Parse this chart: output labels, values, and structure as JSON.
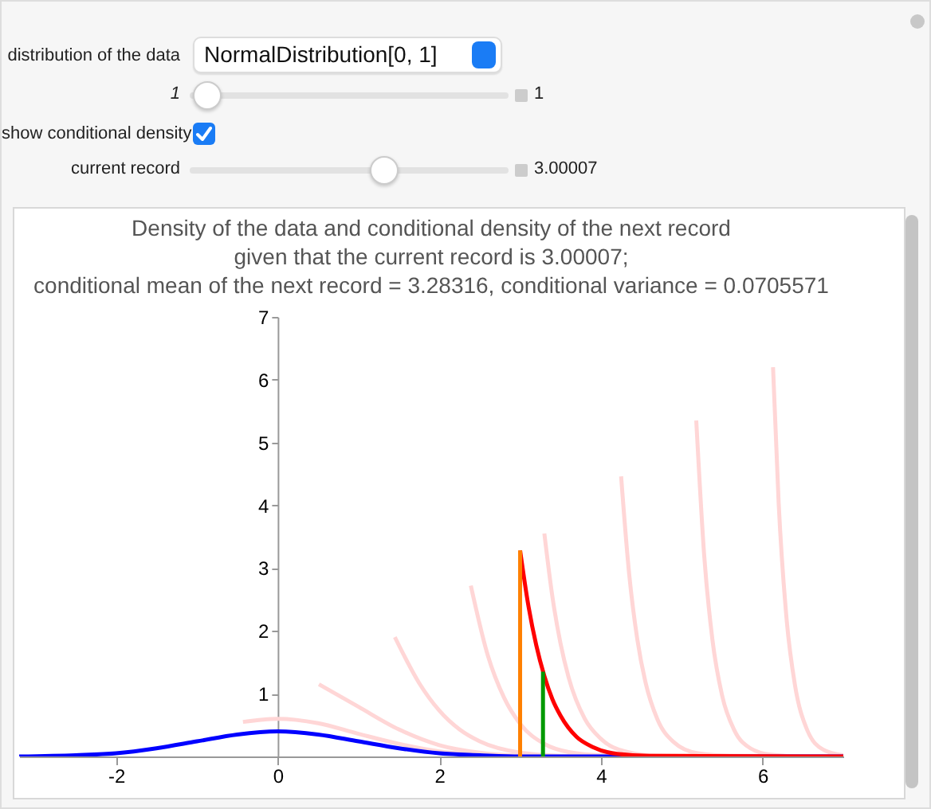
{
  "chart_data": [
    {
      "type": "other",
      "annotations": [
        "distribution of the data",
        "NormalDistribution[0, 1]",
        "1",
        "1",
        "show conditional density",
        "current record",
        "3.00007"
      ]
    },
    {
      "type": "line",
      "title": "Density of the data and conditional density of the next record\ngiven that the current record is 3.00007;\nconditional mean of the next record = 3.28316, conditional variance = 0.0705571",
      "xlim": [
        -3.2,
        7
      ],
      "xticks": [
        -2,
        0,
        2,
        4,
        6
      ],
      "ylim": [
        0,
        7
      ],
      "yticks": [
        {
          "value": 0,
          "label": null
        },
        1,
        2,
        3,
        4,
        5,
        6,
        7
      ],
      "series": [
        {
          "color": "#ffd6d6",
          "x": [
            -0.43,
            0,
            0.5,
            1,
            1.5,
            2,
            2.5,
            3,
            4,
            7
          ],
          "values": [
            0.55,
            0.6,
            0.53,
            0.36,
            0.2,
            0.08,
            0.03,
            0.01,
            0,
            0
          ]
        },
        {
          "color": "#ffd6d6",
          "x": [
            0.51,
            1,
            1.5,
            2,
            2.5,
            3,
            3.5,
            4,
            7
          ],
          "values": [
            1.15,
            0.79,
            0.43,
            0.18,
            0.06,
            0.01,
            0,
            0,
            0
          ]
        },
        {
          "color": "#ffd6d6",
          "x": [
            1.45,
            1.75,
            2,
            2.25,
            2.5,
            3,
            3.5,
            4,
            7
          ],
          "values": [
            1.9,
            1.17,
            0.73,
            0.43,
            0.24,
            0.06,
            0.01,
            0,
            0
          ]
        },
        {
          "color": "#ffd6d6",
          "x": [
            2.39,
            2.6,
            2.8,
            3,
            3.3,
            3.6,
            4,
            7
          ],
          "values": [
            2.72,
            1.61,
            0.94,
            0.52,
            0.2,
            0.07,
            0.02,
            0
          ]
        },
        {
          "color": "#ffd6d6",
          "x": [
            3.3,
            3.4,
            3.5,
            3.6,
            3.8,
            4,
            4.3,
            4.7,
            7
          ],
          "values": [
            3.55,
            2.54,
            1.8,
            1.26,
            0.6,
            0.28,
            0.08,
            0.01,
            0
          ]
        },
        {
          "color": "#ffd6d6",
          "x": [
            4.25,
            4.35,
            4.45,
            4.55,
            4.7,
            4.9,
            5.2,
            5.6,
            7
          ],
          "values": [
            4.46,
            2.9,
            1.87,
            1.19,
            0.59,
            0.23,
            0.05,
            0.01,
            0
          ]
        },
        {
          "color": "#ffd6d6",
          "x": [
            5.18,
            5.28,
            5.38,
            5.5,
            5.65,
            5.85,
            6.1,
            6.5,
            7
          ],
          "values": [
            5.35,
            3.17,
            1.86,
            0.97,
            0.42,
            0.13,
            0.03,
            0,
            0
          ]
        },
        {
          "color": "#ffd6d6",
          "x": [
            6.13,
            6.2,
            6.3,
            6.4,
            6.55,
            6.75,
            7
          ],
          "values": [
            6.2,
            4.03,
            2.16,
            1.15,
            0.43,
            0.11,
            0.02
          ]
        },
        {
          "color": "#0000ff",
          "x": [
            -3.2,
            -2.5,
            -2,
            -1.5,
            -1,
            -0.5,
            0,
            0.5,
            1,
            1.5,
            2,
            2.5,
            3,
            3.5,
            4,
            7
          ],
          "values": [
            0,
            0.02,
            0.05,
            0.13,
            0.24,
            0.35,
            0.4,
            0.35,
            0.24,
            0.13,
            0.05,
            0.02,
            0,
            0,
            0,
            0
          ]
        },
        {
          "color": "#ff0000",
          "x": [
            3.00007,
            3.1,
            3.2,
            3.3,
            3.4,
            3.5,
            3.7,
            3.9,
            4.2,
            4.6,
            7
          ],
          "values": [
            3.28,
            2.42,
            1.77,
            1.28,
            0.91,
            0.65,
            0.31,
            0.15,
            0.04,
            0.01,
            0
          ]
        },
        {
          "color": "#ff8000",
          "x": [
            3.00007,
            3.00007
          ],
          "values": [
            0,
            3.28
          ]
        },
        {
          "color": "#009900",
          "x": [
            3.28316,
            3.28316
          ],
          "values": [
            0,
            1.35
          ]
        }
      ]
    }
  ]
}
